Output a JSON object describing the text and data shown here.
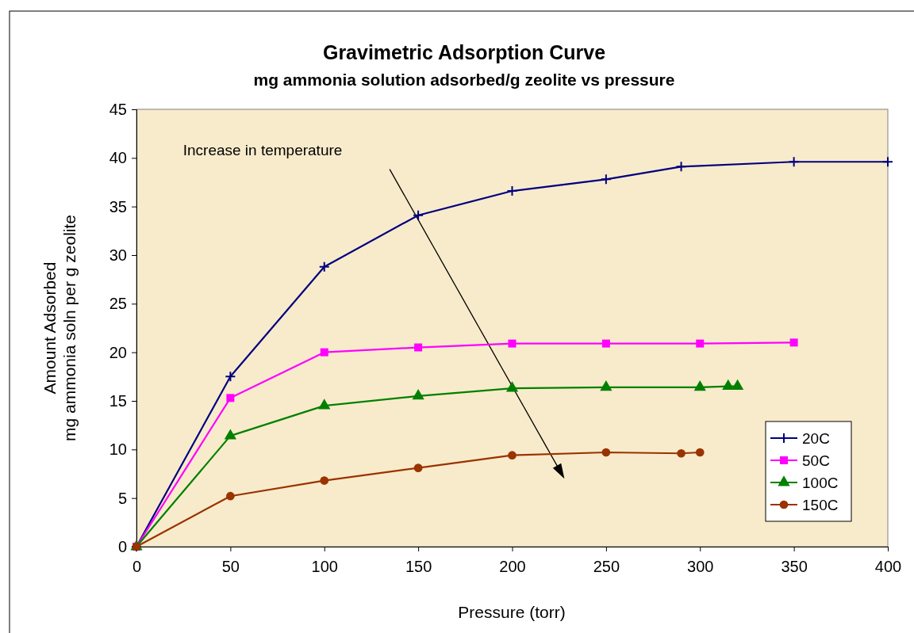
{
  "chart_data": {
    "type": "line",
    "title": "Gravimetric Adsorption Curve",
    "subtitle": "mg ammonia solution adsorbed/g zeolite vs pressure",
    "xlabel": "Pressure (torr)",
    "ylabel": "Amount Adsorbed\nmg ammonia soln per g zeolite",
    "annotations": [
      "Increase in temperature"
    ],
    "xlim": [
      0,
      400
    ],
    "xticks": [
      0,
      50,
      100,
      150,
      200,
      250,
      300,
      350,
      400
    ],
    "ylim": [
      0,
      45
    ],
    "yticks": [
      0,
      5,
      10,
      15,
      20,
      25,
      30,
      35,
      40,
      45
    ],
    "grid": false,
    "legend": "bottom right",
    "line_style": "solid",
    "series": [
      {
        "name": "20C",
        "color": "#000080",
        "marker": "cross",
        "x": [
          0,
          50,
          100,
          150,
          200,
          250,
          290,
          350,
          400
        ],
        "values": [
          0,
          17.5,
          28.8,
          34.1,
          36.6,
          37.8,
          39.1,
          39.6,
          39.6
        ]
      },
      {
        "name": "50C",
        "color": "#ff00ff",
        "marker": "square",
        "x": [
          0,
          50,
          100,
          150,
          200,
          250,
          300,
          350
        ],
        "values": [
          0,
          15.3,
          20.0,
          20.5,
          20.9,
          20.9,
          20.9,
          21.0
        ]
      },
      {
        "name": "100C",
        "color": "#008000",
        "marker": "triangle",
        "x": [
          0,
          50,
          100,
          150,
          200,
          250,
          300,
          315,
          320
        ],
        "values": [
          0,
          11.4,
          14.5,
          15.5,
          16.3,
          16.4,
          16.4,
          16.5,
          16.5
        ]
      },
      {
        "name": "150C",
        "color": "#993300",
        "marker": "circle",
        "x": [
          0,
          50,
          100,
          150,
          200,
          250,
          290,
          300
        ],
        "values": [
          0,
          5.2,
          6.8,
          8.1,
          9.4,
          9.7,
          9.6,
          9.7
        ]
      }
    ]
  }
}
